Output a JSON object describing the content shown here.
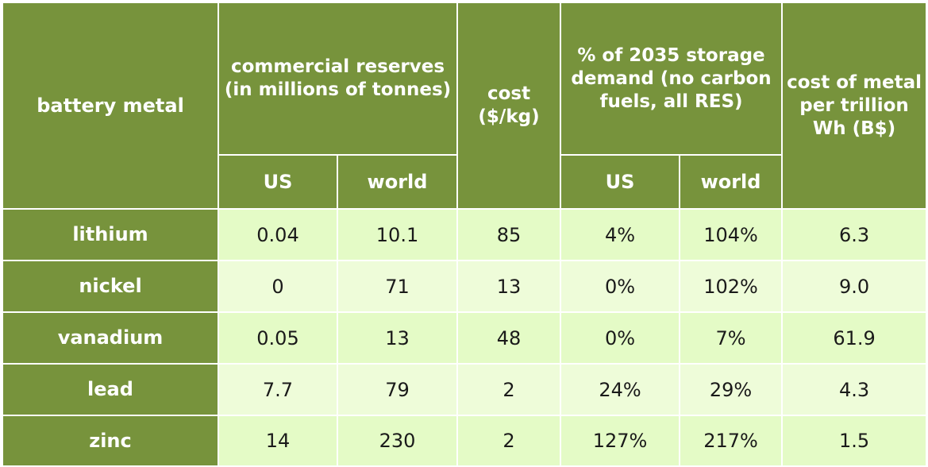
{
  "colors": {
    "header_bg": "#77933c",
    "header_text": "#ffffff",
    "cell_bg": "#e4fbc6",
    "cell_bg_alt": "#eefcd9",
    "border": "#ffffff"
  },
  "headers": {
    "metal": "battery metal",
    "reserves": "commercial reserves (in millions of tonnes)",
    "cost": "cost ($/kg)",
    "demand": "% of 2035 storage demand (no carbon fuels, all RES)",
    "cost_per_wh": "cost of metal per trillion Wh (B$)",
    "reserves_us": "US",
    "reserves_world": "world",
    "demand_us": "US",
    "demand_world": "world"
  },
  "rows": [
    {
      "metal": "lithium",
      "reserves_us": "0.04",
      "reserves_world": "10.1",
      "cost": "85",
      "demand_us": "4%",
      "demand_world": "104%",
      "cost_per_wh": "6.3"
    },
    {
      "metal": "nickel",
      "reserves_us": "0",
      "reserves_world": "71",
      "cost": "13",
      "demand_us": "0%",
      "demand_world": "102%",
      "cost_per_wh": "9.0"
    },
    {
      "metal": "vanadium",
      "reserves_us": "0.05",
      "reserves_world": "13",
      "cost": "48",
      "demand_us": "0%",
      "demand_world": "7%",
      "cost_per_wh": "61.9"
    },
    {
      "metal": "lead",
      "reserves_us": "7.7",
      "reserves_world": "79",
      "cost": "2",
      "demand_us": "24%",
      "demand_world": "29%",
      "cost_per_wh": "4.3"
    },
    {
      "metal": "zinc",
      "reserves_us": "14",
      "reserves_world": "230",
      "cost": "2",
      "demand_us": "127%",
      "demand_world": "217%",
      "cost_per_wh": "1.5"
    }
  ]
}
